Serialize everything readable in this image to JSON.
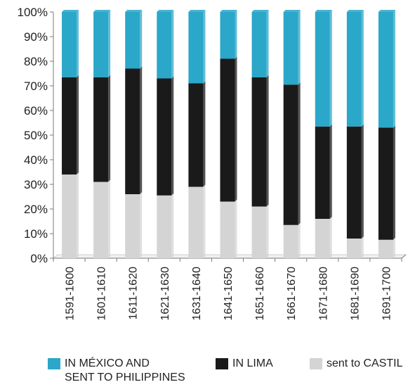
{
  "chart_data": {
    "type": "bar",
    "stacked": true,
    "percent": true,
    "categories": [
      "1591-1600",
      "1601-1610",
      "1611-1620",
      "1621-1630",
      "1631-1640",
      "1641-1650",
      "1651-1660",
      "1661-1670",
      "1671-1680",
      "1681-1690",
      "1691-1700"
    ],
    "series": [
      {
        "name": "sent to CASTIL",
        "color": "#d4d4d4",
        "values": [
          34,
          31,
          26,
          25.5,
          29,
          23,
          21,
          13.5,
          16,
          8,
          7.5
        ]
      },
      {
        "name": "IN LIMA",
        "color": "#1a1a1a",
        "values": [
          39.5,
          42.5,
          51,
          47.5,
          42,
          58,
          52.5,
          57,
          37.5,
          45.5,
          45.5
        ]
      },
      {
        "name": "IN MÉXICO AND SENT TO PHILIPPINES",
        "color": "#2aa7c9",
        "values": [
          26.5,
          26.5,
          23,
          27,
          29,
          19,
          26.5,
          29.5,
          46.5,
          46.5,
          47
        ]
      }
    ],
    "yticks": [
      "0%",
      "10%",
      "20%",
      "30%",
      "40%",
      "50%",
      "60%",
      "70%",
      "80%",
      "90%",
      "100%"
    ],
    "ylim": [
      0,
      100
    ],
    "legend_position": "bottom",
    "grid": false,
    "xlabel": "",
    "ylabel": ""
  },
  "legend": {
    "mexico_line1": "IN MÉXICO AND",
    "mexico_line2": "SENT TO PHILIPPINES",
    "lima": "IN LIMA",
    "castil": "sent to CASTIL"
  }
}
